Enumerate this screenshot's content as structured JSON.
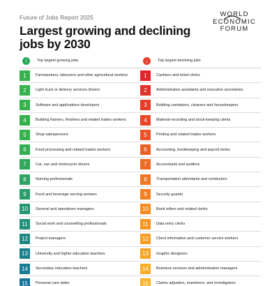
{
  "header": {
    "report_label": "Future of Jobs Report 2025",
    "title": "Largest growing and declining jobs by 2030"
  },
  "logo": {
    "lines": [
      "WORLD",
      "ECONOMIC",
      "FORUM"
    ]
  },
  "growing": {
    "header_label": "Top largest growing jobs",
    "icon": "arrow-up-icon",
    "color": "#27a85b",
    "items": [
      {
        "rank": "1",
        "label": "Farmworkers, labourers and other agricultural workers"
      },
      {
        "rank": "2",
        "label": "Light truck or delivery services drivers"
      },
      {
        "rank": "3",
        "label": "Software and applications developers"
      },
      {
        "rank": "4",
        "label": "Building framers, finishers and related trades workers"
      },
      {
        "rank": "5",
        "label": "Shop salespersons"
      },
      {
        "rank": "6",
        "label": "Food processing and related trades workers"
      },
      {
        "rank": "7",
        "label": "Car, van and motorcycle drivers"
      },
      {
        "rank": "8",
        "label": "Nursing professionals"
      },
      {
        "rank": "9",
        "label": "Food and beverage serving workers"
      },
      {
        "rank": "10",
        "label": "General and operations managers"
      },
      {
        "rank": "11",
        "label": "Social work and counselling professionals"
      },
      {
        "rank": "12",
        "label": "Project managers"
      },
      {
        "rank": "13",
        "label": "University and higher education teachers"
      },
      {
        "rank": "14",
        "label": "Secondary education teachers"
      },
      {
        "rank": "15",
        "label": "Personal care aides"
      }
    ],
    "badge_colors": [
      "#35b24b",
      "#35b24b",
      "#35b24b",
      "#35b24b",
      "#35b24b",
      "#33ad52",
      "#30a85a",
      "#2ea362",
      "#2b9d6a",
      "#289672",
      "#248f7a",
      "#208882",
      "#1c808a",
      "#197a92",
      "#16749a"
    ]
  },
  "declining": {
    "header_label": "Top largest declining jobs",
    "icon": "arrow-down-icon",
    "color": "#e23d2d",
    "items": [
      {
        "rank": "1",
        "label": "Cashiers and ticket clerks"
      },
      {
        "rank": "2",
        "label": "Administrative assistants and executive secretaries"
      },
      {
        "rank": "3",
        "label": "Building caretakers, cleaners and housekeepers"
      },
      {
        "rank": "4",
        "label": "Material-recording and stock-keeping clerks"
      },
      {
        "rank": "5",
        "label": "Printing and related trades workers"
      },
      {
        "rank": "6",
        "label": "Accounting, bookkeeping and payroll clerks"
      },
      {
        "rank": "7",
        "label": "Accountants and auditors"
      },
      {
        "rank": "8",
        "label": "Transportation attendants and conductors"
      },
      {
        "rank": "9",
        "label": "Security guards"
      },
      {
        "rank": "10",
        "label": "Bank tellers and related clerks"
      },
      {
        "rank": "11",
        "label": "Data entry clerks"
      },
      {
        "rank": "12",
        "label": "Client information and customer service workers"
      },
      {
        "rank": "13",
        "label": "Graphic designers"
      },
      {
        "rank": "14",
        "label": "Business services and administration managers"
      },
      {
        "rank": "15",
        "label": "Claims adjusters, examiners, and investigators"
      }
    ],
    "badge_colors": [
      "#e2242a",
      "#e4302a",
      "#e63c29",
      "#e84828",
      "#ea5327",
      "#ec5f26",
      "#ee6a25",
      "#f07524",
      "#f28023",
      "#f38b23",
      "#f49423",
      "#f59d24",
      "#f6a626",
      "#f7ad28",
      "#f8b32a"
    ]
  }
}
